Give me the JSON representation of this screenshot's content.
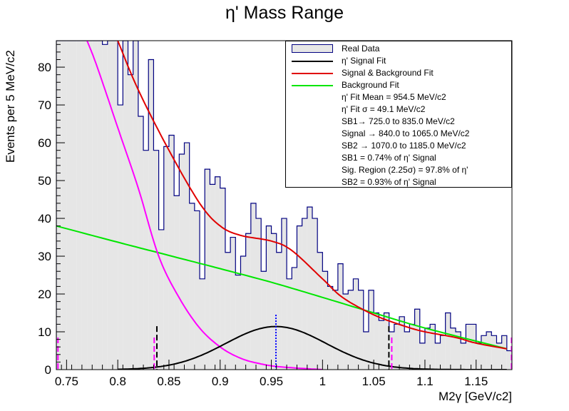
{
  "chart_data": {
    "type": "bar",
    "title": "η' Mass Range",
    "xlabel": "M2γ [GeV/c2]",
    "ylabel": "Events per 5 MeV/c2",
    "xlim": [
      0.74,
      1.185
    ],
    "ylim": [
      0,
      87
    ],
    "x_ticks": [
      "0.75",
      "0.8",
      "0.85",
      "0.9",
      "0.95",
      "1",
      "1.05",
      "1.1",
      "1.15"
    ],
    "x_tick_values": [
      0.75,
      0.8,
      0.85,
      0.9,
      0.95,
      1.0,
      1.05,
      1.1,
      1.15
    ],
    "y_ticks": [
      "0",
      "10",
      "20",
      "30",
      "40",
      "50",
      "60",
      "70",
      "80"
    ],
    "y_tick_values": [
      0,
      10,
      20,
      30,
      40,
      50,
      60,
      70,
      80
    ],
    "bin_width": 0.005,
    "bin_start": 0.74,
    "histogram_values": [
      87,
      87,
      87,
      87,
      87,
      87,
      87,
      87,
      87,
      86,
      87,
      87,
      70,
      87,
      78,
      87,
      67,
      58,
      82,
      58,
      37,
      59,
      62,
      46,
      57,
      60,
      44,
      42,
      24,
      53,
      49,
      51,
      48,
      31,
      35,
      25,
      30,
      36,
      44,
      40,
      26,
      38,
      36,
      31,
      40,
      24,
      27,
      38,
      40,
      43,
      40,
      31,
      26,
      22,
      21,
      28,
      20,
      21,
      24,
      21,
      10,
      21,
      15,
      13,
      15,
      10,
      12,
      14,
      10,
      12,
      16,
      7,
      11,
      12,
      7,
      9,
      15,
      11,
      10,
      7,
      12,
      12,
      7,
      9,
      10,
      9,
      7,
      9,
      5
    ],
    "signal_fit": {
      "mean": 0.9545,
      "sigma": 0.0491,
      "amplitude": 11.4
    },
    "background_fit_points": {
      "x": [
        0.74,
        0.8,
        0.85,
        0.9,
        0.95,
        1.0,
        1.05,
        1.1,
        1.18
      ],
      "y": [
        38,
        33.7,
        30.2,
        26.7,
        23.1,
        19.1,
        15,
        11,
        5.5
      ]
    },
    "total_fit_points": {
      "x": [
        0.8,
        0.82,
        0.85,
        0.88,
        0.9,
        0.92,
        0.95,
        0.97,
        1.0,
        1.02,
        1.05,
        1.08,
        1.1,
        1.13,
        1.15,
        1.18
      ],
      "y": [
        87,
        74,
        58,
        44,
        38,
        35.5,
        34,
        31.5,
        24,
        19,
        14.5,
        11.5,
        10,
        8.5,
        7,
        5.5
      ]
    },
    "background_magenta_points": {
      "x": [
        0.77,
        0.78,
        0.8,
        0.82,
        0.84,
        0.86,
        0.88,
        0.9,
        0.92,
        0.94,
        0.96,
        1.0
      ],
      "y": [
        87,
        80,
        64,
        48,
        30,
        19,
        11,
        6,
        3,
        1.5,
        0.7,
        0
      ]
    },
    "markers": {
      "black_dashed": [
        0.8382,
        1.0648
      ],
      "magenta_dashed": [
        0.7416,
        0.8356,
        1.0676,
        1.1846
      ],
      "blue_dotted": [
        0.9545
      ]
    },
    "colors": {
      "histogram_fill": "#e6e6e6",
      "histogram_line": "#000080",
      "signal_fit": "#000000",
      "total_fit": "#e00000",
      "background_fit": "#00e600",
      "magenta_curve": "#ff00ff",
      "mean_marker": "#0000ff"
    },
    "legend": {
      "placement": "top-right",
      "entries": [
        {
          "label": "Real Data",
          "symbol": "box"
        },
        {
          "label": "η' Signal Fit",
          "symbol": "line",
          "color": "#000000"
        },
        {
          "label": "Signal & Background Fit",
          "symbol": "line",
          "color": "#e00000"
        },
        {
          "label": "Background Fit",
          "symbol": "line",
          "color": "#00e600"
        },
        {
          "label": "η' Fit Mean = 954.5 MeV/c2",
          "symbol": "none"
        },
        {
          "label": "η' Fit σ = 49.1 MeV/c2",
          "symbol": "none"
        },
        {
          "label": "SB1→ 725.0 to 835.0 MeV/c2",
          "symbol": "none"
        },
        {
          "label": "Signal → 840.0 to 1065.0 MeV/c2",
          "symbol": "none"
        },
        {
          "label": "SB2 → 1070.0 to 1185.0 MeV/c2",
          "symbol": "none"
        },
        {
          "label": "SB1 = 0.74% of η' Signal",
          "symbol": "none"
        },
        {
          "label": "Sig. Region (2.25σ) = 97.8% of η'",
          "symbol": "none"
        },
        {
          "label": "SB2 = 0.93% of η' Signal",
          "symbol": "none"
        }
      ]
    }
  }
}
